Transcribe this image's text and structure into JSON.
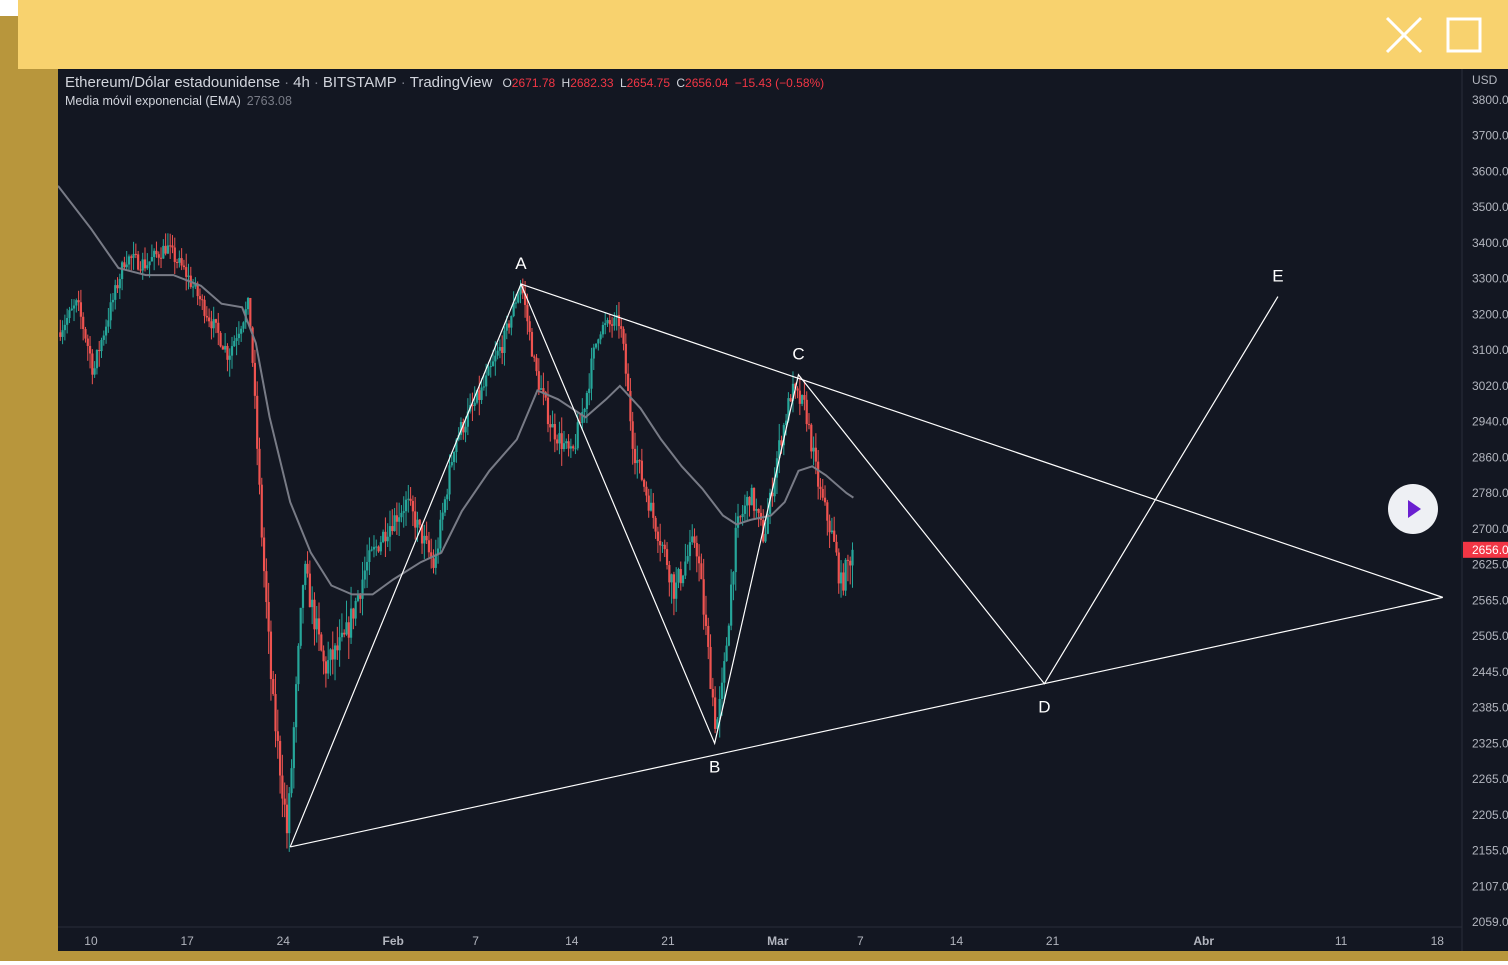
{
  "window": {
    "close_icon": "close-icon",
    "maximize_icon": "maximize-icon",
    "header_color": "#f8d26e",
    "frame_color": "#b8963c"
  },
  "legend": {
    "symbol": "Ethereum/Dólar estadounidense",
    "interval": "4h",
    "exchange": "BITSTAMP",
    "source": "TradingView",
    "open_label": "O",
    "open": "2671.78",
    "high_label": "H",
    "high": "2682.33",
    "low_label": "L",
    "low": "2654.75",
    "close_label": "C",
    "close": "2656.04",
    "change": "−15.43 (−0.58%)",
    "indicator": "Media móvil exponencial (EMA)",
    "indicator_value": "2763.08"
  },
  "play_button": {
    "icon": "play-icon",
    "icon_color": "#6a1fd0"
  },
  "chart_data": {
    "type": "candlestick",
    "currency": "USD",
    "y_ticks": [
      "3800.0",
      "3700.0",
      "3600.0",
      "3500.0",
      "3400.0",
      "3300.0",
      "3200.0",
      "3100.0",
      "3020.0",
      "2940.0",
      "2860.0",
      "2780.0",
      "2700.0",
      "2625.0",
      "2565.0",
      "2505.0",
      "2445.0",
      "2385.0",
      "2325.0",
      "2265.0",
      "2205.0",
      "2155.0",
      "2107.0",
      "2059.0"
    ],
    "y_tick_values": [
      3800,
      3700,
      3600,
      3500,
      3400,
      3300,
      3200,
      3100,
      3020,
      2940,
      2860,
      2780,
      2700,
      2625,
      2565,
      2505,
      2445,
      2385,
      2325,
      2265,
      2205,
      2155,
      2107,
      2059
    ],
    "last_price": "2656.0",
    "last_price_value": 2656.04,
    "x_ticks": [
      {
        "label": "10",
        "day": 10,
        "bold": false
      },
      {
        "label": "17",
        "day": 17,
        "bold": false
      },
      {
        "label": "24",
        "day": 24,
        "bold": false
      },
      {
        "label": "Feb",
        "day": 32,
        "bold": true
      },
      {
        "label": "7",
        "day": 38,
        "bold": false
      },
      {
        "label": "14",
        "day": 45,
        "bold": false
      },
      {
        "label": "21",
        "day": 52,
        "bold": false
      },
      {
        "label": "Mar",
        "day": 60,
        "bold": true
      },
      {
        "label": "7",
        "day": 66,
        "bold": false
      },
      {
        "label": "14",
        "day": 73,
        "bold": false
      },
      {
        "label": "21",
        "day": 80,
        "bold": false
      },
      {
        "label": "Abr",
        "day": 91,
        "bold": true
      },
      {
        "label": "11",
        "day": 101,
        "bold": false
      },
      {
        "label": "18",
        "day": 108,
        "bold": false
      }
    ],
    "x_range_days": [
      7.6,
      109.8
    ],
    "price_path": [
      [
        7.6,
        3150
      ],
      [
        9.0,
        3230
      ],
      [
        10.2,
        3050
      ],
      [
        11.0,
        3160
      ],
      [
        12.5,
        3360
      ],
      [
        14.0,
        3340
      ],
      [
        15.5,
        3390
      ],
      [
        17.0,
        3310
      ],
      [
        18.5,
        3200
      ],
      [
        20.0,
        3090
      ],
      [
        21.5,
        3230
      ],
      [
        22.5,
        2650
      ],
      [
        23.2,
        2400
      ],
      [
        24.3,
        2175
      ],
      [
        25.5,
        2620
      ],
      [
        27.0,
        2450
      ],
      [
        28.5,
        2500
      ],
      [
        30.0,
        2620
      ],
      [
        31.5,
        2700
      ],
      [
        33.0,
        2760
      ],
      [
        35.0,
        2620
      ],
      [
        36.5,
        2900
      ],
      [
        38.5,
        3010
      ],
      [
        40.0,
        3120
      ],
      [
        41.3,
        3290
      ],
      [
        42.3,
        3060
      ],
      [
        43.5,
        2930
      ],
      [
        45.0,
        2860
      ],
      [
        46.0,
        2990
      ],
      [
        47.0,
        3160
      ],
      [
        48.5,
        3180
      ],
      [
        49.5,
        2880
      ],
      [
        51.0,
        2720
      ],
      [
        52.5,
        2580
      ],
      [
        54.0,
        2680
      ],
      [
        55.0,
        2460
      ],
      [
        55.5,
        2350
      ],
      [
        56.0,
        2420
      ],
      [
        57.0,
        2700
      ],
      [
        58.0,
        2780
      ],
      [
        59.0,
        2680
      ],
      [
        60.0,
        2870
      ],
      [
        61.0,
        3010
      ],
      [
        62.0,
        2970
      ],
      [
        63.0,
        2790
      ],
      [
        64.0,
        2680
      ],
      [
        64.6,
        2590
      ],
      [
        65.5,
        2656
      ]
    ],
    "ema": {
      "name": "Media móvil exponencial (EMA)",
      "points": [
        [
          7.6,
          3560
        ],
        [
          10.0,
          3440
        ],
        [
          12.0,
          3330
        ],
        [
          14.0,
          3310
        ],
        [
          16.0,
          3310
        ],
        [
          18.0,
          3280
        ],
        [
          19.5,
          3230
        ],
        [
          21.0,
          3220
        ],
        [
          22.0,
          3120
        ],
        [
          23.0,
          2950
        ],
        [
          24.5,
          2760
        ],
        [
          26.0,
          2650
        ],
        [
          27.5,
          2590
        ],
        [
          29.0,
          2575
        ],
        [
          30.5,
          2575
        ],
        [
          32.0,
          2600
        ],
        [
          34.0,
          2630
        ],
        [
          35.5,
          2650
        ],
        [
          37.0,
          2740
        ],
        [
          39.0,
          2830
        ],
        [
          41.0,
          2900
        ],
        [
          42.5,
          3010
        ],
        [
          44.0,
          2990
        ],
        [
          45.0,
          2970
        ],
        [
          46.0,
          2950
        ],
        [
          47.5,
          2990
        ],
        [
          48.5,
          3020
        ],
        [
          50.0,
          2970
        ],
        [
          51.5,
          2900
        ],
        [
          53.0,
          2840
        ],
        [
          54.5,
          2790
        ],
        [
          56.0,
          2730
        ],
        [
          57.0,
          2710
        ],
        [
          58.0,
          2720
        ],
        [
          59.5,
          2730
        ],
        [
          60.5,
          2760
        ],
        [
          61.5,
          2830
        ],
        [
          62.5,
          2840
        ],
        [
          63.5,
          2820
        ],
        [
          65.0,
          2780
        ],
        [
          65.5,
          2770
        ]
      ]
    },
    "pattern": {
      "points": [
        {
          "label": "",
          "day": 24.5,
          "price": 2160
        },
        {
          "label": "A",
          "day": 41.3,
          "price": 3285
        },
        {
          "label": "B",
          "day": 55.4,
          "price": 2325
        },
        {
          "label": "C",
          "day": 61.5,
          "price": 3045
        },
        {
          "label": "D",
          "day": 79.4,
          "price": 2425
        },
        {
          "label": "E",
          "day": 96.4,
          "price": 3250
        }
      ],
      "apex": {
        "day": 108.4,
        "price": 2570
      },
      "color": "#ffffff"
    },
    "colors": {
      "up": "#26a69a",
      "down": "#ef5350",
      "ema": "#787b86",
      "background": "#131722",
      "text": "#b2b5be",
      "last_price_badge": "#f23645"
    }
  }
}
